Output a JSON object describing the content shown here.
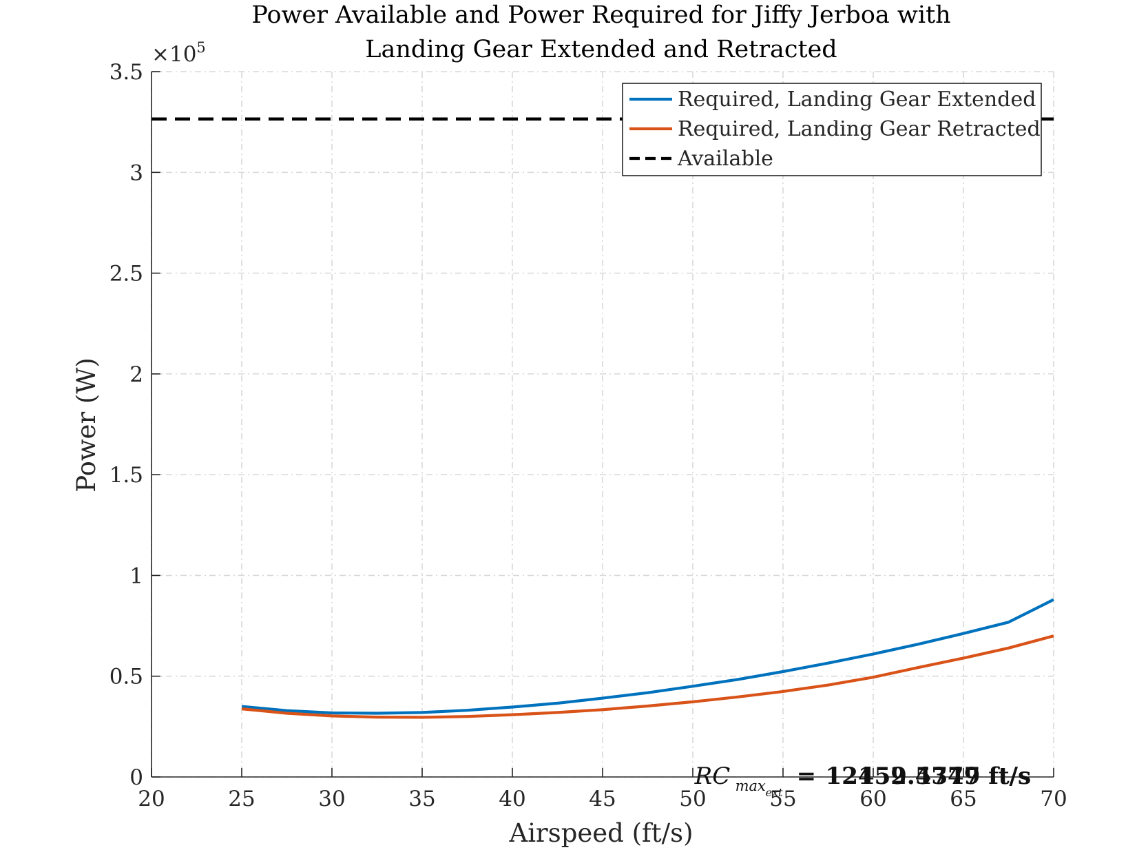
{
  "chart_data": {
    "type": "line",
    "title": [
      "Power Available and Power Required for Jiffy Jerboa with",
      "Landing Gear Extended and Retracted"
    ],
    "xlabel": "Airspeed (ft/s)",
    "ylabel": "Power (W)",
    "y_exponent_label": "×10",
    "y_exponent_power": "5",
    "xlim": [
      20,
      70
    ],
    "ylim": [
      0,
      350000
    ],
    "xticks": [
      20,
      25,
      30,
      35,
      40,
      45,
      50,
      55,
      60,
      65,
      70
    ],
    "yticks": [
      0,
      50000,
      100000,
      150000,
      200000,
      250000,
      300000,
      350000
    ],
    "ytick_labels": [
      "0",
      "0.5",
      "1",
      "1.5",
      "2",
      "2.5",
      "3",
      "3.5"
    ],
    "grid": true,
    "legend_position": "top-right",
    "series": [
      {
        "name": "Required, Landing Gear Extended",
        "color": "#0072BD",
        "style": "solid",
        "x": [
          25,
          27.5,
          30,
          32.5,
          35,
          37.5,
          40,
          42.5,
          45,
          47.5,
          50,
          52.5,
          55,
          57.5,
          60,
          62.5,
          65,
          67.5,
          70
        ],
        "y": [
          35000,
          32900,
          31800,
          31600,
          32000,
          33100,
          34700,
          36600,
          39100,
          41800,
          45000,
          48400,
          52300,
          56500,
          61000,
          65900,
          71200,
          76800,
          88000
        ]
      },
      {
        "name": "Required, Landing Gear Retracted",
        "color": "#D95319",
        "style": "solid",
        "x": [
          25,
          27.5,
          30,
          32.5,
          35,
          37.5,
          40,
          42.5,
          45,
          47.5,
          50,
          52.5,
          55,
          57.5,
          60,
          62.5,
          65,
          67.5,
          70
        ],
        "y": [
          33800,
          31600,
          30300,
          29700,
          29600,
          30000,
          30900,
          32000,
          33400,
          35200,
          37300,
          39700,
          42400,
          45600,
          49500,
          54300,
          59000,
          64000,
          70000
        ]
      },
      {
        "name": "Available",
        "color": "#000000",
        "style": "dashed",
        "x": [
          20,
          70
        ],
        "y": [
          326500,
          326500
        ]
      }
    ],
    "annotations": [
      {
        "variable": "RC",
        "subscript": "max",
        "sub_subscript": "ext",
        "equals": "=",
        "text_a": "12452.4749 ft/s",
        "text_b": "12159.5377 ft/s",
        "x": 50.1,
        "y": 0
      }
    ]
  }
}
